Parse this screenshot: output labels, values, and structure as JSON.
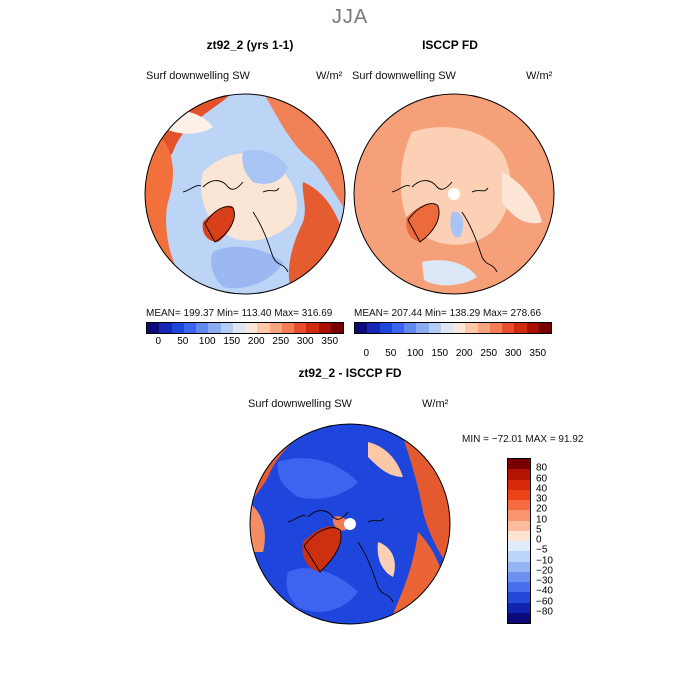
{
  "season": "JJA",
  "panels": [
    {
      "title": "zt92_2 (yrs 1-1)",
      "field": "Surf downwelling SW",
      "units": "W/m²",
      "stats": "MEAN= 199.37   Min= 113.40   Max= 316.69"
    },
    {
      "title": "ISCCP FD",
      "field": "Surf downwelling SW",
      "units": "W/m²",
      "stats": "MEAN= 207.44   Min= 138.29   Max= 278.66"
    }
  ],
  "diff": {
    "title": "zt92_2 - ISCCP FD",
    "field": "Surf downwelling SW",
    "units": "W/m²",
    "minmax": "MIN = −72.01  MAX =  91.92"
  },
  "colorbar": {
    "ticks": [
      "0",
      "50",
      "100",
      "150",
      "200",
      "250",
      "300",
      "350"
    ],
    "colors": [
      "#0a0a7a",
      "#1428b4",
      "#1e46dc",
      "#3c64f0",
      "#6488f0",
      "#8caaf0",
      "#b4ccf4",
      "#dce8f8",
      "#fde8d8",
      "#fcc8a8",
      "#f8a47c",
      "#f47c54",
      "#e8502c",
      "#d02c10",
      "#a81004",
      "#780000"
    ]
  },
  "diff_colorbar": {
    "labels": [
      "80",
      "60",
      "40",
      "30",
      "20",
      "10",
      "5",
      "0",
      "−5",
      "−10",
      "−20",
      "−30",
      "−40",
      "−60",
      "−80"
    ],
    "colors": [
      "#780000",
      "#b41404",
      "#d8280c",
      "#ec4418",
      "#f46c40",
      "#f89470",
      "#fcbc9c",
      "#fde4d0",
      "#e0ecfa",
      "#bcd4f8",
      "#94b4f4",
      "#6c90f0",
      "#4870ec",
      "#2448d8",
      "#1024b0",
      "#0a0a7a"
    ]
  }
}
